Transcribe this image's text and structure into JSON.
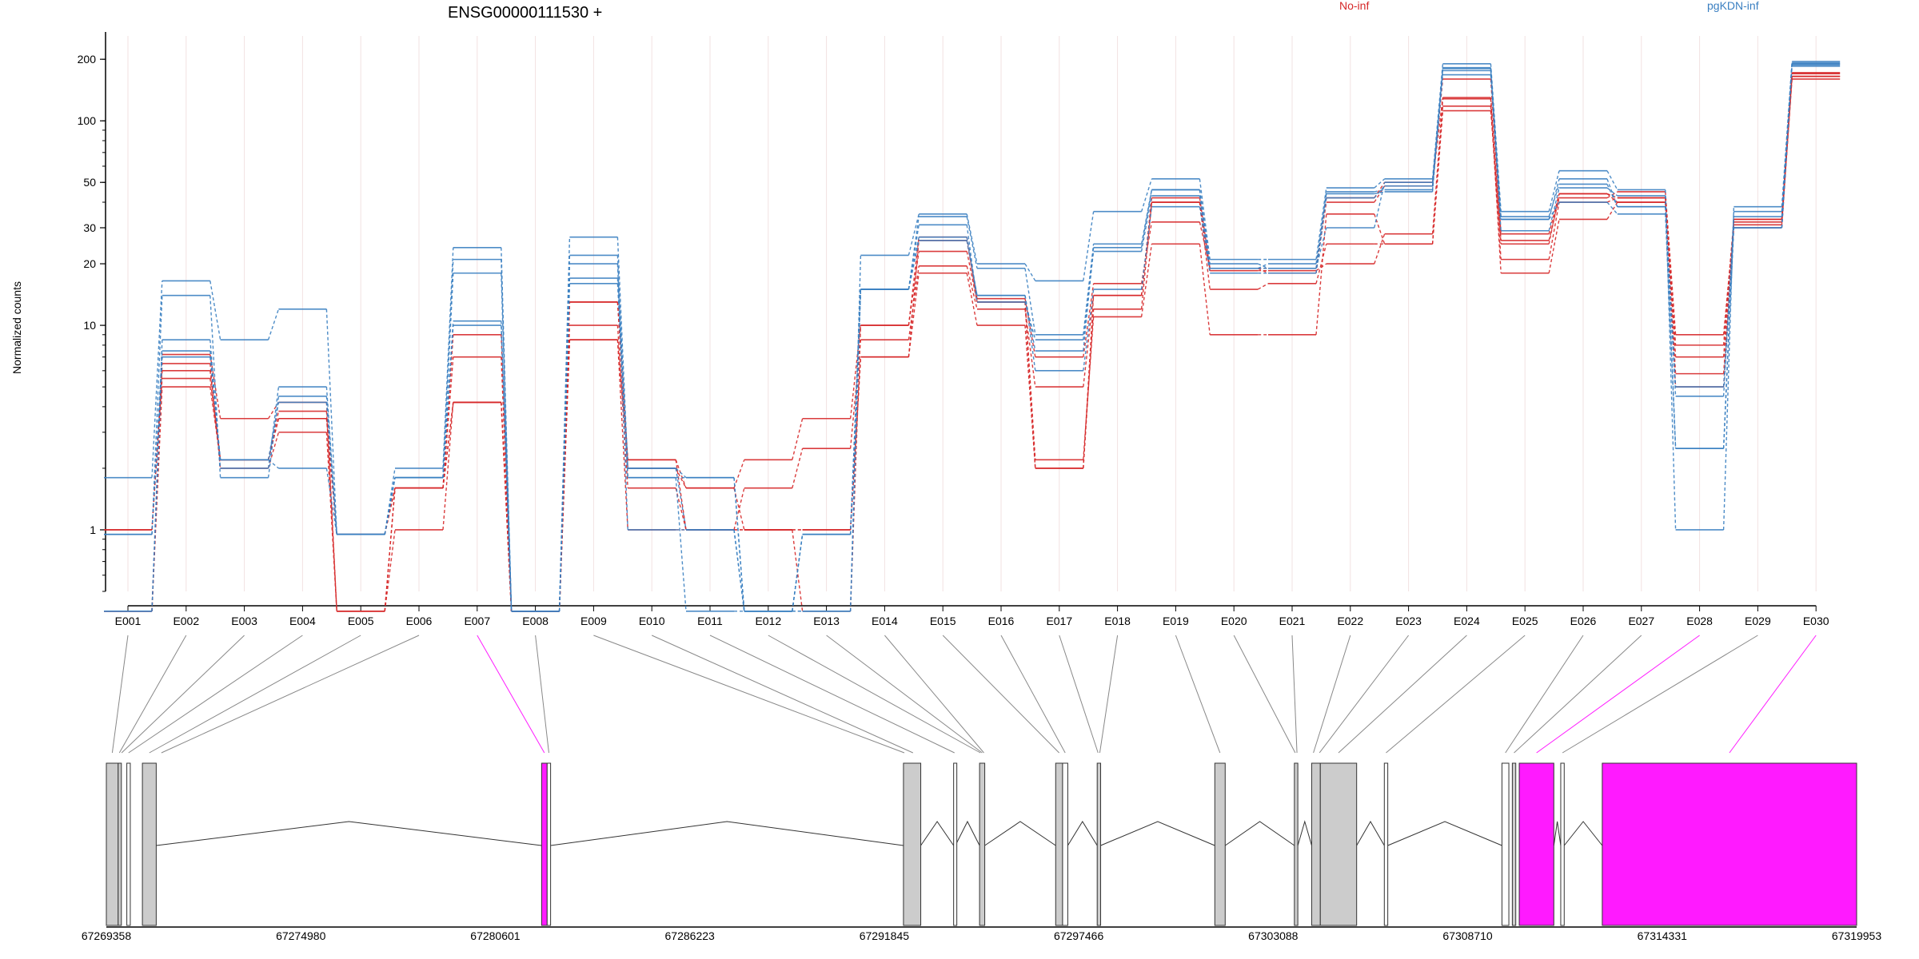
{
  "chart_data": {
    "type": "line",
    "title": "ENSG00000111530 +",
    "ylabel": "Normalized counts",
    "xlabel": "",
    "y_scale": "log",
    "ylim": [
      0.5,
      260
    ],
    "y_ticks": [
      1,
      10,
      20,
      30,
      50,
      100,
      200
    ],
    "categories": [
      "E001",
      "E002",
      "E003",
      "E004",
      "E005",
      "E006",
      "E007",
      "E008",
      "E009",
      "E010",
      "E011",
      "E012",
      "E013",
      "E014",
      "E015",
      "E016",
      "E017",
      "E018",
      "E019",
      "E020",
      "E021",
      "E022",
      "E023",
      "E024",
      "E025",
      "E026",
      "E027",
      "E028",
      "E029",
      "E030"
    ],
    "grid": true,
    "legend": [
      {
        "label": "No-inf",
        "color": "#d62728"
      },
      {
        "label": "pgKDN-inf",
        "color": "#3a7fc1"
      }
    ],
    "series": [
      {
        "group": "No-inf",
        "color": "#d62728",
        "values": [
          1.0,
          5.5,
          2.2,
          3.5,
          0.95,
          1.6,
          7.0,
          0.4,
          13.0,
          2.0,
          1.6,
          1.0,
          1.0,
          7.0,
          18.0,
          10.0,
          2.0,
          12.0,
          40.0,
          18.5,
          18.5,
          20.0,
          28.0,
          128.0,
          18.0,
          33.0,
          40.0,
          5.8,
          30.0,
          165.0
        ]
      },
      {
        "group": "No-inf",
        "color": "#d62728",
        "values": [
          0.4,
          6.5,
          2.0,
          3.0,
          0.4,
          1.0,
          4.2,
          0.4,
          10.0,
          1.6,
          1.0,
          1.6,
          2.5,
          8.5,
          19.5,
          12.0,
          5.0,
          14.0,
          40.0,
          15.0,
          16.0,
          25.0,
          25.0,
          118.0,
          21.0,
          40.0,
          42.0,
          8.0,
          33.0,
          172.0
        ]
      },
      {
        "group": "No-inf",
        "color": "#d62728",
        "values": [
          0.4,
          7.2,
          3.5,
          4.2,
          0.4,
          1.6,
          9.0,
          0.4,
          8.5,
          2.2,
          1.6,
          2.2,
          3.5,
          10.0,
          23.0,
          13.0,
          2.2,
          11.0,
          25.0,
          9.0,
          9.0,
          35.0,
          25.0,
          112.0,
          26.0,
          42.0,
          45.0,
          9.0,
          31.0,
          165.0
        ]
      },
      {
        "group": "No-inf",
        "color": "#d62728",
        "values": [
          0.4,
          5.0,
          2.2,
          3.8,
          0.4,
          1.6,
          4.2,
          0.4,
          8.5,
          1.0,
          1.0,
          1.0,
          1.0,
          7.0,
          26.0,
          13.5,
          7.0,
          16.0,
          32.0,
          19.0,
          19.0,
          40.0,
          48.0,
          160.0,
          28.0,
          44.0,
          40.0,
          5.0,
          33.0,
          170.0
        ]
      },
      {
        "group": "No-inf",
        "color": "#d62728",
        "values": [
          1.0,
          6.0,
          2.2,
          3.5,
          0.95,
          1.6,
          4.2,
          0.4,
          13.0,
          2.2,
          1.0,
          1.0,
          0.4,
          10.0,
          27.0,
          13.0,
          2.0,
          14.0,
          42.0,
          19.0,
          18.0,
          42.0,
          50.0,
          130.0,
          25.0,
          44.0,
          42.0,
          7.0,
          32.0,
          160.0
        ]
      },
      {
        "group": "pgKDN-inf",
        "color": "#3a7fc1",
        "values": [
          1.8,
          16.5,
          8.5,
          12.0,
          0.95,
          2.0,
          24.0,
          0.4,
          27.0,
          2.0,
          1.8,
          0.4,
          0.4,
          22.0,
          35.0,
          20.0,
          16.5,
          36.0,
          52.0,
          21.0,
          21.0,
          47.0,
          52.0,
          190.0,
          36.0,
          57.0,
          46.0,
          1.0,
          38.0,
          195.0
        ]
      },
      {
        "group": "pgKDN-inf",
        "color": "#3a7fc1",
        "values": [
          0.95,
          14.0,
          1.8,
          4.5,
          0.95,
          1.8,
          21.0,
          0.4,
          17.0,
          2.0,
          1.0,
          0.4,
          0.95,
          15.0,
          34.0,
          19.0,
          9.0,
          25.0,
          46.0,
          19.0,
          20.0,
          44.0,
          45.0,
          182.0,
          33.0,
          52.0,
          38.0,
          5.0,
          30.0,
          190.0
        ]
      },
      {
        "group": "pgKDN-inf",
        "color": "#3a7fc1",
        "values": [
          0.95,
          7.5,
          2.2,
          4.2,
          0.95,
          1.8,
          18.0,
          0.4,
          22.0,
          1.8,
          0.4,
          0.4,
          0.95,
          15.0,
          31.0,
          13.0,
          8.5,
          23.0,
          43.0,
          19.0,
          19.0,
          30.0,
          50.0,
          176.0,
          29.0,
          47.0,
          43.0,
          2.5,
          36.0,
          188.0
        ]
      },
      {
        "group": "pgKDN-inf",
        "color": "#3a7fc1",
        "values": [
          0.4,
          7.0,
          2.2,
          2.0,
          0.95,
          1.8,
          10.5,
          0.4,
          20.0,
          1.0,
          1.0,
          0.4,
          0.95,
          15.0,
          26.0,
          14.0,
          6.0,
          15.0,
          38.0,
          18.0,
          18.0,
          42.0,
          48.0,
          168.0,
          33.0,
          40.0,
          35.0,
          2.5,
          30.0,
          185.0
        ]
      },
      {
        "group": "pgKDN-inf",
        "color": "#3a7fc1",
        "values": [
          0.4,
          8.5,
          2.0,
          5.0,
          0.95,
          1.8,
          10.0,
          0.4,
          16.0,
          1.8,
          1.8,
          0.4,
          0.4,
          15.0,
          27.0,
          14.0,
          7.5,
          24.0,
          46.0,
          20.0,
          19.0,
          45.0,
          46.0,
          180.0,
          34.0,
          49.0,
          38.0,
          4.5,
          34.0,
          192.0
        ]
      }
    ]
  },
  "gene_model": {
    "coordinate_ticks": [
      "67269358",
      "67274980",
      "67280601",
      "67286223",
      "67291845",
      "67297466",
      "67303088",
      "67308710",
      "67314331",
      "67319953"
    ],
    "coordinate_range": [
      67269358,
      67319953
    ],
    "highlight_color": "#ff1aff",
    "exon_color": "#cccccc",
    "highlighted_exons": [
      "E007",
      "E028",
      "E030"
    ],
    "exon_map": [
      {
        "id": "E001",
        "start": 67269358,
        "end": 67269700
      },
      {
        "id": "E002",
        "start": 67269700,
        "end": 67269770
      },
      {
        "id": "E003",
        "start": 67269800,
        "end": 67269800
      },
      {
        "id": "E004",
        "start": 67269950,
        "end": 67270050
      },
      {
        "id": "E005",
        "start": 67270400,
        "end": 67270800
      },
      {
        "id": "E006",
        "start": 67270800,
        "end": 67271100
      },
      {
        "id": "E007",
        "start": 67281940,
        "end": 67282100
      },
      {
        "id": "E008",
        "start": 67282100,
        "end": 67282200
      },
      {
        "id": "E009",
        "start": 67292400,
        "end": 67292450
      },
      {
        "id": "E010",
        "start": 67292450,
        "end": 67292900
      },
      {
        "id": "E011",
        "start": 67293850,
        "end": 67293900
      },
      {
        "id": "E012",
        "start": 67294600,
        "end": 67294650
      },
      {
        "id": "E013",
        "start": 67294650,
        "end": 67294700
      },
      {
        "id": "E014",
        "start": 67294700,
        "end": 67294750
      },
      {
        "id": "E015",
        "start": 67296800,
        "end": 67297000
      },
      {
        "id": "E016",
        "start": 67297000,
        "end": 67297150
      },
      {
        "id": "E017",
        "start": 67298000,
        "end": 67298050
      },
      {
        "id": "E018",
        "start": 67298050,
        "end": 67298100
      },
      {
        "id": "E019",
        "start": 67301400,
        "end": 67301700
      },
      {
        "id": "E020",
        "start": 67303700,
        "end": 67303750
      },
      {
        "id": "E021",
        "start": 67303750,
        "end": 67303800
      },
      {
        "id": "E022",
        "start": 67304200,
        "end": 67304300
      },
      {
        "id": "E023",
        "start": 67304400,
        "end": 67304450
      },
      {
        "id": "E024",
        "start": 67304450,
        "end": 67305500
      },
      {
        "id": "E025",
        "start": 67306300,
        "end": 67306400
      },
      {
        "id": "E026",
        "start": 67309700,
        "end": 67309900
      },
      {
        "id": "E027",
        "start": 67310000,
        "end": 67310100
      },
      {
        "id": "E028",
        "start": 67310200,
        "end": 67311200
      },
      {
        "id": "E029",
        "start": 67311400,
        "end": 67311500
      },
      {
        "id": "E030",
        "start": 67312600,
        "end": 67319953
      }
    ],
    "exon_blocks": [
      {
        "start": 67269358,
        "end": 67269700,
        "fill": "#cccccc"
      },
      {
        "start": 67269700,
        "end": 67269770,
        "fill": "#cccccc"
      },
      {
        "start": 67269950,
        "end": 67270050,
        "fill": "#ffffff"
      },
      {
        "start": 67270400,
        "end": 67270800,
        "fill": "#cccccc"
      },
      {
        "start": 67281940,
        "end": 67282100,
        "fill": "#ff1aff"
      },
      {
        "start": 67282100,
        "end": 67282200,
        "fill": "#ffffff"
      },
      {
        "start": 67292400,
        "end": 67292900,
        "fill": "#cccccc"
      },
      {
        "start": 67293850,
        "end": 67293900,
        "fill": "#ffffff"
      },
      {
        "start": 67294600,
        "end": 67294750,
        "fill": "#cccccc"
      },
      {
        "start": 67296800,
        "end": 67297000,
        "fill": "#cccccc"
      },
      {
        "start": 67297000,
        "end": 67297150,
        "fill": "#ffffff"
      },
      {
        "start": 67298000,
        "end": 67298100,
        "fill": "#cccccc"
      },
      {
        "start": 67301400,
        "end": 67301700,
        "fill": "#cccccc"
      },
      {
        "start": 67303700,
        "end": 67303800,
        "fill": "#cccccc"
      },
      {
        "start": 67304200,
        "end": 67304450,
        "fill": "#cccccc"
      },
      {
        "start": 67304450,
        "end": 67305500,
        "fill": "#cccccc"
      },
      {
        "start": 67306300,
        "end": 67306400,
        "fill": "#ffffff"
      },
      {
        "start": 67309700,
        "end": 67309900,
        "fill": "#ffffff"
      },
      {
        "start": 67310000,
        "end": 67310100,
        "fill": "#cccccc"
      },
      {
        "start": 67310200,
        "end": 67311200,
        "fill": "#ff1aff"
      },
      {
        "start": 67311400,
        "end": 67311500,
        "fill": "#ffffff"
      },
      {
        "start": 67312600,
        "end": 67319953,
        "fill": "#ff1aff"
      }
    ],
    "introns": [
      [
        67270800,
        67281940
      ],
      [
        67282200,
        67292400
      ],
      [
        67292900,
        67293850
      ],
      [
        67293900,
        67294600
      ],
      [
        67294750,
        67296800
      ],
      [
        67297150,
        67298000
      ],
      [
        67298100,
        67301400
      ],
      [
        67301700,
        67303700
      ],
      [
        67303800,
        67304200
      ],
      [
        67305500,
        67306300
      ],
      [
        67306400,
        67309700
      ],
      [
        67311200,
        67311400
      ],
      [
        67311500,
        67312600
      ]
    ]
  }
}
